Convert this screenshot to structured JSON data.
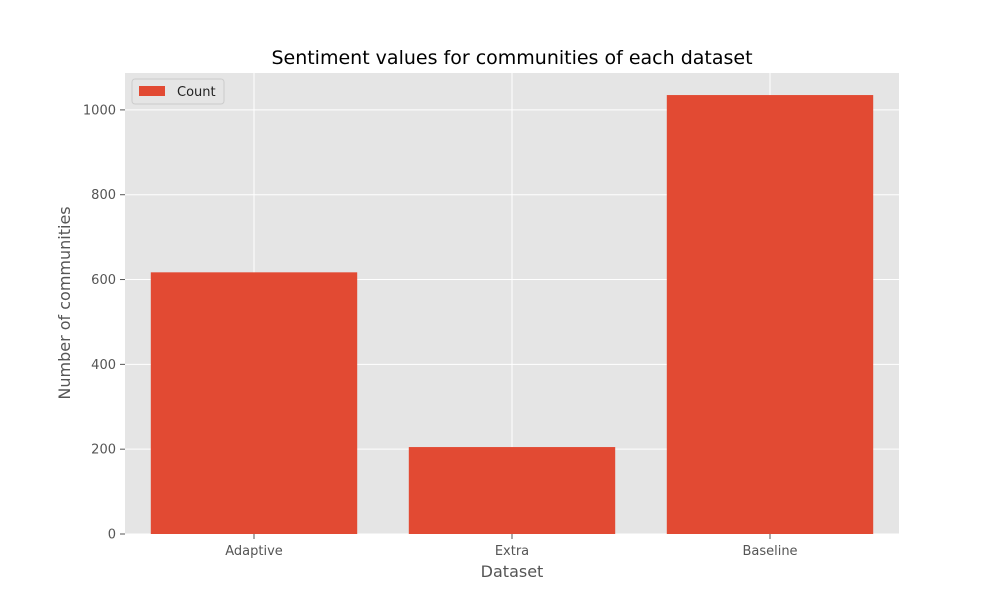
{
  "chart_data": {
    "type": "bar",
    "title": "Sentiment values for communities of each dataset",
    "xlabel": "Dataset",
    "ylabel": "Number of communities",
    "categories": [
      "Adaptive",
      "Extra",
      "Baseline"
    ],
    "series": [
      {
        "name": "Count",
        "values": [
          617,
          205,
          1035
        ],
        "color": "#E24A33"
      }
    ],
    "ylim": [
      0,
      1087
    ],
    "yticks": [
      0,
      200,
      400,
      600,
      800,
      1000
    ],
    "grid": true,
    "legend_position": "top-left",
    "background_color": "#E5E5E5",
    "grid_color": "#FFFFFF"
  }
}
